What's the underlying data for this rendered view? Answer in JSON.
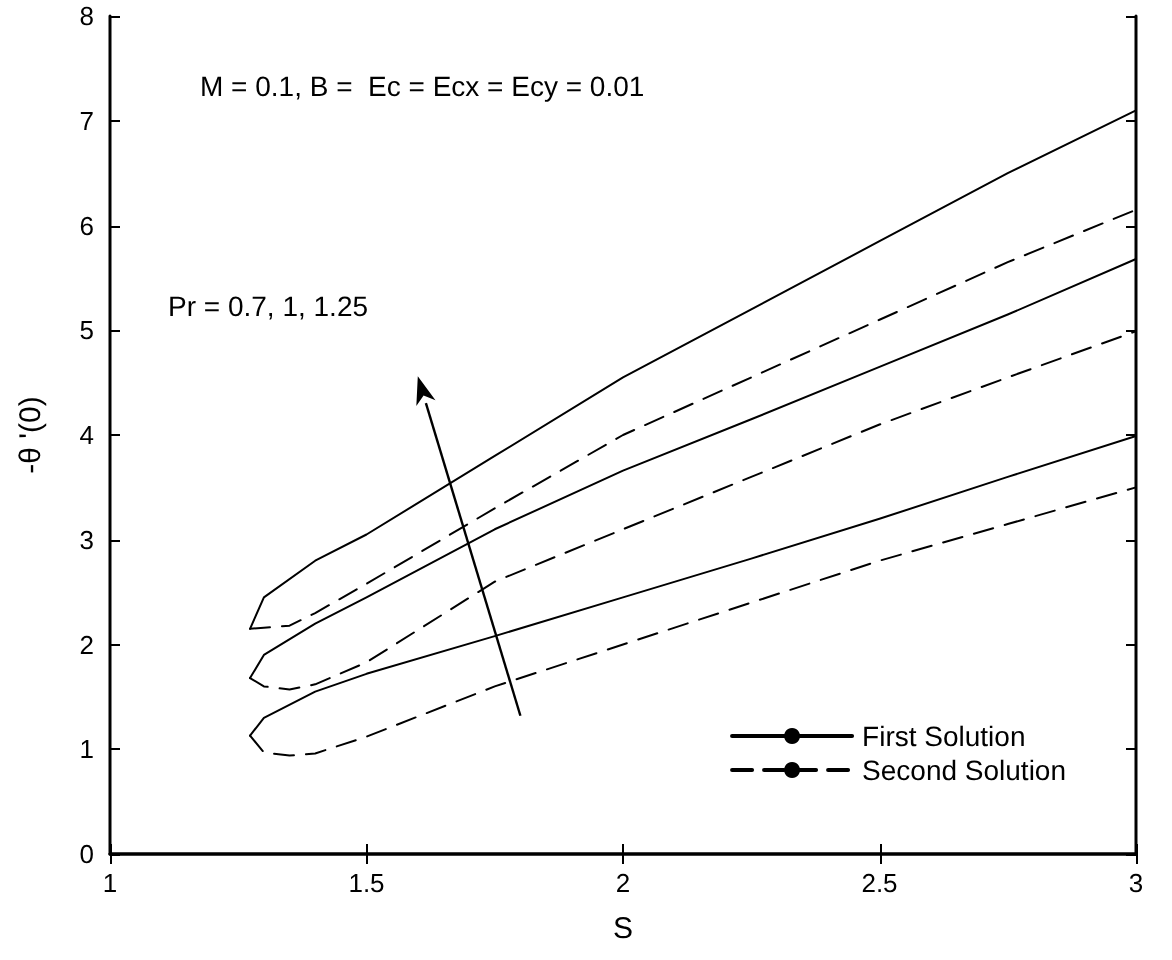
{
  "chart_data": {
    "type": "line",
    "xlabel": "S",
    "ylabel": "-θ '(0)",
    "annotations": [
      "M = 0.1, B =  Ec = Ecx = Ecy = 0.01",
      "Pr = 0.7, 1, 1.25"
    ],
    "xlim": [
      1,
      3
    ],
    "xticks": [
      1,
      1.5,
      2,
      2.5,
      3
    ],
    "ylim": [
      0,
      8
    ],
    "yticks": [
      0,
      1,
      2,
      3,
      4,
      5,
      6,
      7,
      8
    ],
    "grid": false,
    "legend": "bottom right",
    "marker": "none",
    "series": [
      {
        "name": "First Solution",
        "color": "#000000",
        "line_style": "solid",
        "x": [
          1.273,
          1.3,
          1.4,
          1.5,
          1.75,
          2,
          2.25,
          2.5,
          2.75,
          3
        ],
        "values": [
          1.13,
          1.3,
          1.55,
          1.72,
          2.08,
          2.45,
          2.82,
          3.2,
          3.6,
          3.99
        ]
      },
      {
        "color": "#000000",
        "line_style": "solid",
        "x": [
          1.273,
          1.3,
          1.4,
          1.5,
          1.75,
          2,
          2.25,
          2.5,
          2.75,
          3
        ],
        "values": [
          1.68,
          1.9,
          2.2,
          2.45,
          3.1,
          3.66,
          4.15,
          4.65,
          5.15,
          5.68
        ]
      },
      {
        "color": "#000000",
        "line_style": "solid",
        "x": [
          1.273,
          1.3,
          1.4,
          1.5,
          1.75,
          2,
          2.25,
          2.5,
          2.75,
          3
        ],
        "values": [
          2.15,
          2.45,
          2.8,
          3.05,
          3.8,
          4.55,
          5.2,
          5.85,
          6.5,
          7.1
        ]
      },
      {
        "name": "Second Solution",
        "color": "#000000",
        "line_style": "dashed",
        "x": [
          1.273,
          1.3,
          1.35,
          1.4,
          1.5,
          1.75,
          2,
          2.25,
          2.5,
          2.75,
          3
        ],
        "values": [
          1.13,
          0.97,
          0.94,
          0.96,
          1.12,
          1.6,
          2.0,
          2.4,
          2.8,
          3.15,
          3.5
        ]
      },
      {
        "color": "#000000",
        "line_style": "dashed",
        "x": [
          1.273,
          1.3,
          1.35,
          1.4,
          1.5,
          1.75,
          2,
          2.25,
          2.5,
          2.75,
          3
        ],
        "values": [
          1.68,
          1.6,
          1.57,
          1.62,
          1.83,
          2.6,
          3.1,
          3.6,
          4.1,
          4.55,
          4.99
        ]
      },
      {
        "color": "#000000",
        "line_style": "dashed",
        "x": [
          1.273,
          1.3,
          1.35,
          1.4,
          1.5,
          1.75,
          2,
          2.25,
          2.5,
          2.75,
          3
        ],
        "values": [
          2.15,
          2.16,
          2.18,
          2.3,
          2.58,
          3.3,
          4.0,
          4.55,
          5.1,
          5.65,
          6.15
        ]
      }
    ]
  }
}
